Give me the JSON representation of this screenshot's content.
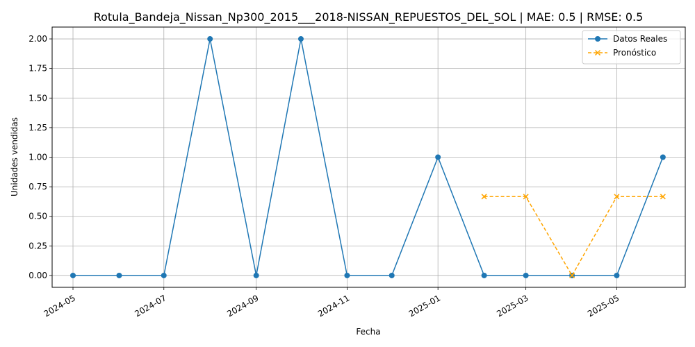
{
  "chart_data": {
    "type": "line",
    "title": "Rotula_Bandeja_Nissan_Np300_2015___2018-NISSAN_REPUESTOS_DEL_SOL | MAE: 0.5 | RMSE: 0.5",
    "xlabel": "Fecha",
    "ylabel": "Unidades vendidas",
    "x_dates": [
      "2024-05-01",
      "2024-06-01",
      "2024-07-01",
      "2024-08-01",
      "2024-09-01",
      "2024-10-01",
      "2024-11-01",
      "2024-12-01",
      "2025-01-01",
      "2025-02-01",
      "2025-03-01",
      "2025-04-01",
      "2025-05-01",
      "2025-06-01"
    ],
    "xlim": [
      "2024-04-17",
      "2025-06-16"
    ],
    "ylim": [
      -0.1,
      2.1
    ],
    "yticks": [
      0.0,
      0.25,
      0.5,
      0.75,
      1.0,
      1.25,
      1.5,
      1.75,
      2.0
    ],
    "ytick_labels": [
      "0.00",
      "0.25",
      "0.50",
      "0.75",
      "1.00",
      "1.25",
      "1.50",
      "1.75",
      "2.00"
    ],
    "xticks": [
      "2024-05-01",
      "2024-07-01",
      "2024-09-01",
      "2024-11-01",
      "2025-01-01",
      "2025-03-01",
      "2025-05-01"
    ],
    "xtick_labels": [
      "2024-05",
      "2024-07",
      "2024-09",
      "2024-11",
      "2025-01",
      "2025-03",
      "2025-05"
    ],
    "grid": true,
    "legend_position": "top-right",
    "series": [
      {
        "name": "Datos Reales",
        "color": "#1f77b4",
        "style": "solid",
        "marker": "circle",
        "x": [
          "2024-05-01",
          "2024-06-01",
          "2024-07-01",
          "2024-08-01",
          "2024-09-01",
          "2024-10-01",
          "2024-11-01",
          "2024-12-01",
          "2025-01-01",
          "2025-02-01",
          "2025-03-01",
          "2025-04-01",
          "2025-05-01",
          "2025-06-01"
        ],
        "values": [
          0,
          0,
          0,
          2,
          0,
          2,
          0,
          0,
          1,
          0,
          0,
          0,
          0,
          1
        ]
      },
      {
        "name": "Pronóstico",
        "color": "#ffa500",
        "style": "dashed",
        "marker": "x",
        "x": [
          "2025-02-01",
          "2025-03-01",
          "2025-04-01",
          "2025-05-01",
          "2025-06-01"
        ],
        "values": [
          0.6667,
          0.6667,
          0.0,
          0.6667,
          0.6667
        ]
      }
    ]
  }
}
